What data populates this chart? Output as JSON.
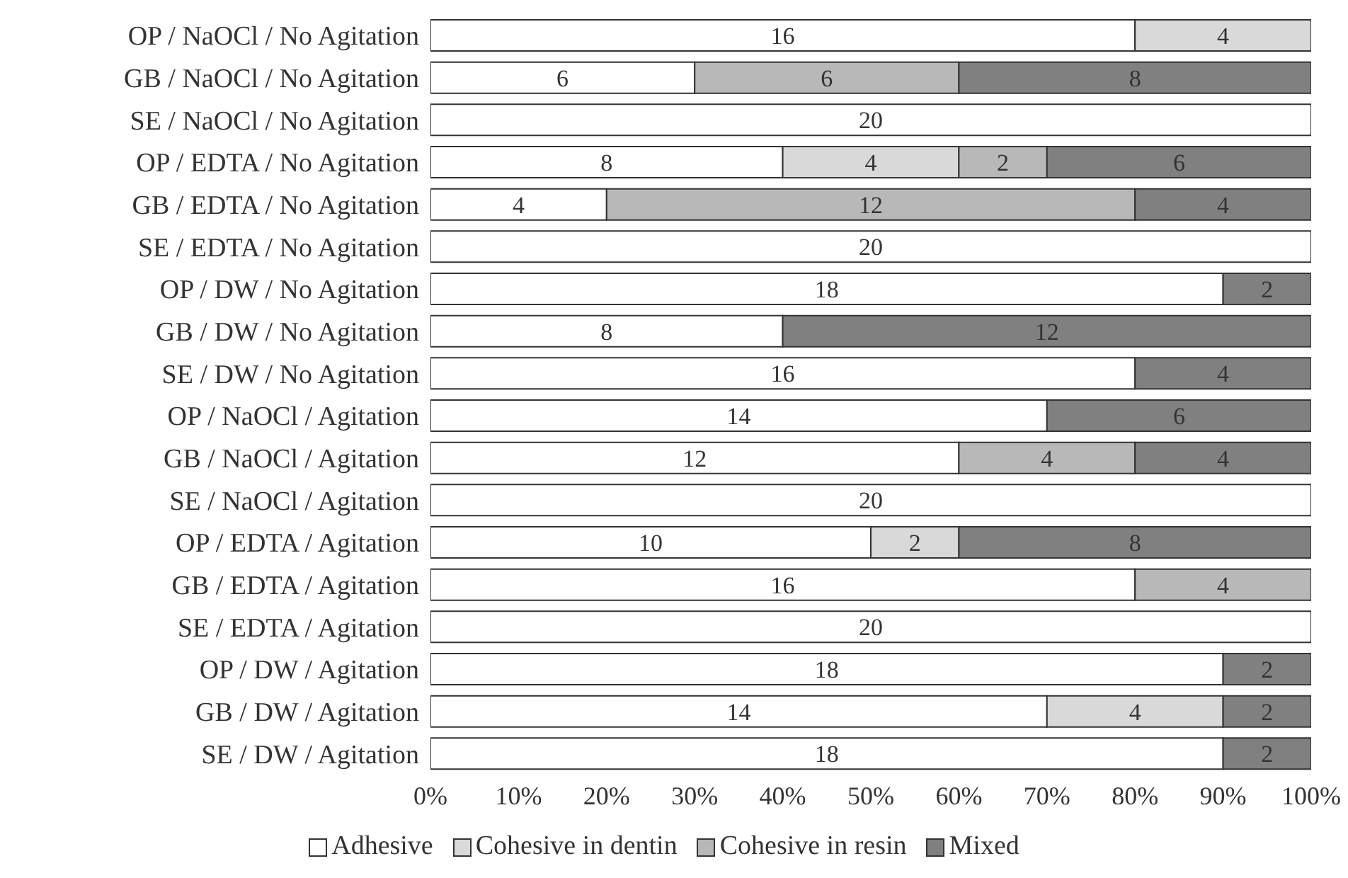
{
  "chart_data": {
    "type": "bar",
    "orientation": "horizontal",
    "stacked": true,
    "categories": [
      "OP / NaOCl / No Agitation",
      "GB / NaOCl / No Agitation",
      "SE / NaOCl / No Agitation",
      "OP / EDTA / No Agitation",
      "GB / EDTA / No Agitation",
      "SE / EDTA / No Agitation",
      "OP / DW / No Agitation",
      "GB / DW / No Agitation",
      "SE / DW / No Agitation",
      "OP / NaOCl / Agitation",
      "GB / NaOCl / Agitation",
      "SE / NaOCl / Agitation",
      "OP / EDTA / Agitation",
      "GB / EDTA / Agitation",
      "SE / EDTA / Agitation",
      "OP / DW / Agitation",
      "GB / DW / Agitation",
      "SE / DW / Agitation"
    ],
    "series": [
      {
        "name": "Adhesive",
        "color": "#ffffff",
        "values": [
          80,
          30,
          100,
          40,
          20,
          100,
          90,
          40,
          80,
          70,
          60,
          100,
          50,
          80,
          100,
          90,
          70,
          90
        ]
      },
      {
        "name": "Cohesive in dentin",
        "color": "#d9d9d9",
        "values": [
          20,
          null,
          null,
          20,
          null,
          null,
          null,
          null,
          null,
          null,
          null,
          null,
          10,
          null,
          null,
          null,
          20,
          null
        ]
      },
      {
        "name": "Cohesive in resin",
        "color": "#b8b8b8",
        "values": [
          null,
          30,
          null,
          10,
          60,
          null,
          null,
          null,
          null,
          null,
          20,
          null,
          null,
          20,
          null,
          null,
          null,
          null
        ]
      },
      {
        "name": "Mixed",
        "color": "#808080",
        "values": [
          null,
          40,
          null,
          30,
          20,
          null,
          10,
          60,
          20,
          30,
          20,
          null,
          40,
          null,
          null,
          10,
          10,
          10
        ]
      }
    ],
    "annotations": [
      {
        "text": "16",
        "x": 40,
        "y": "OP / NaOCl / No Agitation"
      },
      {
        "text": "4",
        "x": 90,
        "y": "OP / NaOCl / No Agitation"
      },
      {
        "text": "6",
        "x": 15,
        "y": "GB / NaOCl / No Agitation"
      },
      {
        "text": "6",
        "x": 45,
        "y": "GB / NaOCl / No Agitation"
      },
      {
        "text": "8",
        "x": 80,
        "y": "GB / NaOCl / No Agitation"
      },
      {
        "text": "20",
        "x": 50,
        "y": "SE / NaOCl / No Agitation"
      },
      {
        "text": "8",
        "x": 20,
        "y": "OP / EDTA / No Agitation"
      },
      {
        "text": "4",
        "x": 50,
        "y": "OP / EDTA / No Agitation"
      },
      {
        "text": "2",
        "x": 65,
        "y": "OP / EDTA / No Agitation"
      },
      {
        "text": "6",
        "x": 85,
        "y": "OP / EDTA / No Agitation"
      },
      {
        "text": "4",
        "x": 10,
        "y": "GB / EDTA / No Agitation"
      },
      {
        "text": "12",
        "x": 50,
        "y": "GB / EDTA / No Agitation"
      },
      {
        "text": "4",
        "x": 90,
        "y": "GB / EDTA / No Agitation"
      },
      {
        "text": "20",
        "x": 50,
        "y": "SE / EDTA / No Agitation"
      },
      {
        "text": "18",
        "x": 45,
        "y": "OP / DW / No Agitation"
      },
      {
        "text": "2",
        "x": 95,
        "y": "OP / DW / No Agitation"
      },
      {
        "text": "8",
        "x": 20,
        "y": "GB / DW / No Agitation"
      },
      {
        "text": "12",
        "x": 70,
        "y": "GB / DW / No Agitation"
      },
      {
        "text": "16",
        "x": 40,
        "y": "SE / DW / No Agitation"
      },
      {
        "text": "4",
        "x": 90,
        "y": "SE / DW / No Agitation"
      },
      {
        "text": "14",
        "x": 35,
        "y": "OP / NaOCl / Agitation"
      },
      {
        "text": "6",
        "x": 85,
        "y": "OP / NaOCl / Agitation"
      },
      {
        "text": "12",
        "x": 30,
        "y": "GB / NaOCl / Agitation"
      },
      {
        "text": "4",
        "x": 70,
        "y": "GB / NaOCl / Agitation"
      },
      {
        "text": "4",
        "x": 90,
        "y": "GB / NaOCl / Agitation"
      },
      {
        "text": "20",
        "x": 50,
        "y": "SE / NaOCl / Agitation"
      },
      {
        "text": "10",
        "x": 25,
        "y": "OP / EDTA / Agitation"
      },
      {
        "text": "2",
        "x": 55,
        "y": "OP / EDTA / Agitation"
      },
      {
        "text": "8",
        "x": 80,
        "y": "OP / EDTA / Agitation"
      },
      {
        "text": "16",
        "x": 40,
        "y": "GB / EDTA / Agitation"
      },
      {
        "text": "4",
        "x": 90,
        "y": "GB / EDTA / Agitation"
      },
      {
        "text": "20",
        "x": 50,
        "y": "SE / EDTA / Agitation"
      },
      {
        "text": "18",
        "x": 45,
        "y": "OP / DW / Agitation"
      },
      {
        "text": "2",
        "x": 95,
        "y": "OP / DW / Agitation"
      },
      {
        "text": "14",
        "x": 35,
        "y": "GB / DW / Agitation"
      },
      {
        "text": "4",
        "x": 80,
        "y": "GB / DW / Agitation"
      },
      {
        "text": "2",
        "x": 95,
        "y": "GB / DW / Agitation"
      },
      {
        "text": "18",
        "x": 45,
        "y": "SE / DW / Agitation"
      },
      {
        "text": "2",
        "x": 95,
        "y": "SE / DW / Agitation"
      }
    ],
    "xlim": [
      0,
      100
    ],
    "xticks": [
      {
        "value": 0,
        "label": "0%"
      },
      {
        "value": 10,
        "label": "10%"
      },
      {
        "value": 20,
        "label": "20%"
      },
      {
        "value": 30,
        "label": "30%"
      },
      {
        "value": 40,
        "label": "40%"
      },
      {
        "value": 50,
        "label": "50%"
      },
      {
        "value": 60,
        "label": "60%"
      },
      {
        "value": 70,
        "label": "70%"
      },
      {
        "value": 80,
        "label": "80%"
      },
      {
        "value": 90,
        "label": "90%"
      },
      {
        "value": 100,
        "label": "100%"
      }
    ],
    "grid": false,
    "legend": "bottom"
  }
}
